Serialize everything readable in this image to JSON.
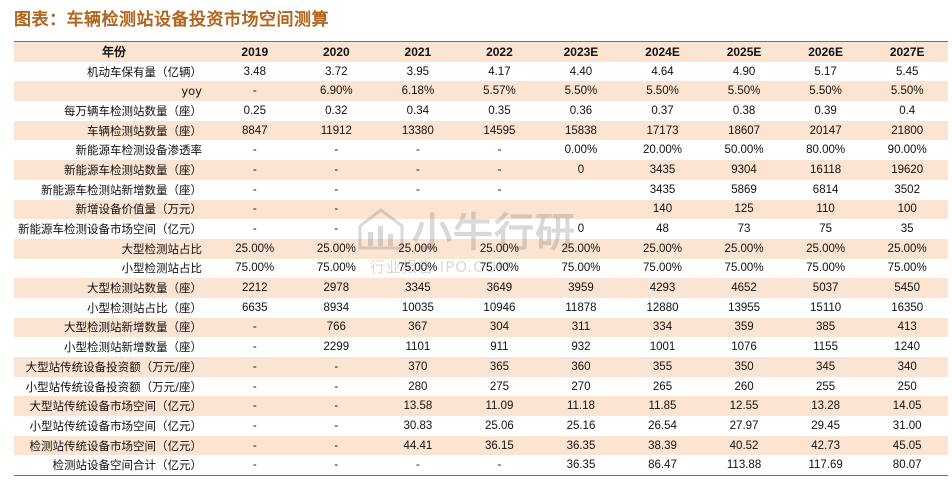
{
  "title": "图表：车辆检测站设备投资市场空间测算",
  "header": [
    "年份",
    "2019",
    "2020",
    "2021",
    "2022",
    "2023E",
    "2024E",
    "2025E",
    "2026E",
    "2027E"
  ],
  "rows": [
    [
      "机动车保有量（亿辆）",
      "3.48",
      "3.72",
      "3.95",
      "4.17",
      "4.40",
      "4.64",
      "4.90",
      "5.17",
      "5.45"
    ],
    [
      "yoy",
      "-",
      "6.90%",
      "6.18%",
      "5.57%",
      "5.50%",
      "5.50%",
      "5.50%",
      "5.50%",
      "5.50%"
    ],
    [
      "每万辆车检测站数量（座）",
      "0.25",
      "0.32",
      "0.34",
      "0.35",
      "0.36",
      "0.37",
      "0.38",
      "0.39",
      "0.4"
    ],
    [
      "车辆检测站数量（座）",
      "8847",
      "11912",
      "13380",
      "14595",
      "15838",
      "17173",
      "18607",
      "20147",
      "21800"
    ],
    [
      "新能源车检测设备渗透率",
      "-",
      "-",
      "-",
      "-",
      "0.00%",
      "20.00%",
      "50.00%",
      "80.00%",
      "90.00%"
    ],
    [
      "新能源车检测站数量（座）",
      "-",
      "-",
      "-",
      "-",
      "0",
      "3435",
      "9304",
      "16118",
      "19620"
    ],
    [
      "新能源车检测站新增数量（座）",
      "-",
      "-",
      "-",
      "-",
      "",
      "3435",
      "5869",
      "6814",
      "3502"
    ],
    [
      "新增设备价值量（万元）",
      "-",
      "-",
      "",
      "",
      "",
      "140",
      "125",
      "110",
      "100"
    ],
    [
      "新能源车检测设备市场空间（亿元）",
      "-",
      "-",
      "",
      "",
      "0",
      "48",
      "73",
      "75",
      "35"
    ],
    [
      "大型检测站占比",
      "25.00%",
      "25.00%",
      "25.00%",
      "25.00%",
      "25.00%",
      "25.00%",
      "25.00%",
      "25.00%",
      "25.00%"
    ],
    [
      "小型检测站占比",
      "75.00%",
      "75.00%",
      "75.00%",
      "75.00%",
      "75.00%",
      "75.00%",
      "75.00%",
      "75.00%",
      "75.00%"
    ],
    [
      "大型检测站数量（座）",
      "2212",
      "2978",
      "3345",
      "3649",
      "3959",
      "4293",
      "4652",
      "5037",
      "5450"
    ],
    [
      "小型检测站占比（座）",
      "6635",
      "8934",
      "10035",
      "10946",
      "11878",
      "12880",
      "13955",
      "15110",
      "16350"
    ],
    [
      "大型检测站新增数量（座）",
      "-",
      "766",
      "367",
      "304",
      "311",
      "334",
      "359",
      "385",
      "413"
    ],
    [
      "小型检测站新增数量（座）",
      "-",
      "2299",
      "1101",
      "911",
      "932",
      "1001",
      "1076",
      "1155",
      "1240"
    ],
    [
      "大型站传统设备投资额（万元/座）",
      "-",
      "-",
      "370",
      "365",
      "360",
      "355",
      "350",
      "345",
      "340"
    ],
    [
      "小型站传统设备投资额（万元/座）",
      "-",
      "-",
      "280",
      "275",
      "270",
      "265",
      "260",
      "255",
      "250"
    ],
    [
      "大型站传统设备市场空间（亿元）",
      "-",
      "-",
      "13.58",
      "11.09",
      "11.18",
      "11.85",
      "12.55",
      "13.28",
      "14.05"
    ],
    [
      "小型站传统设备市场空间（亿元）",
      "-",
      "-",
      "30.83",
      "25.06",
      "25.16",
      "26.54",
      "27.97",
      "29.45",
      "31.00"
    ],
    [
      "检测站传统设备市场空间（亿元）",
      "-",
      "-",
      "44.41",
      "36.15",
      "36.35",
      "38.39",
      "40.52",
      "42.73",
      "45.05"
    ],
    [
      "检测站设备空间合计（亿元）",
      "-",
      "-",
      "-",
      "-",
      "36.35",
      "86.47",
      "113.88",
      "117.69",
      "80.07"
    ]
  ],
  "watermark": {
    "big": "小牛行研",
    "small": "行业报告 IPO.COM"
  }
}
